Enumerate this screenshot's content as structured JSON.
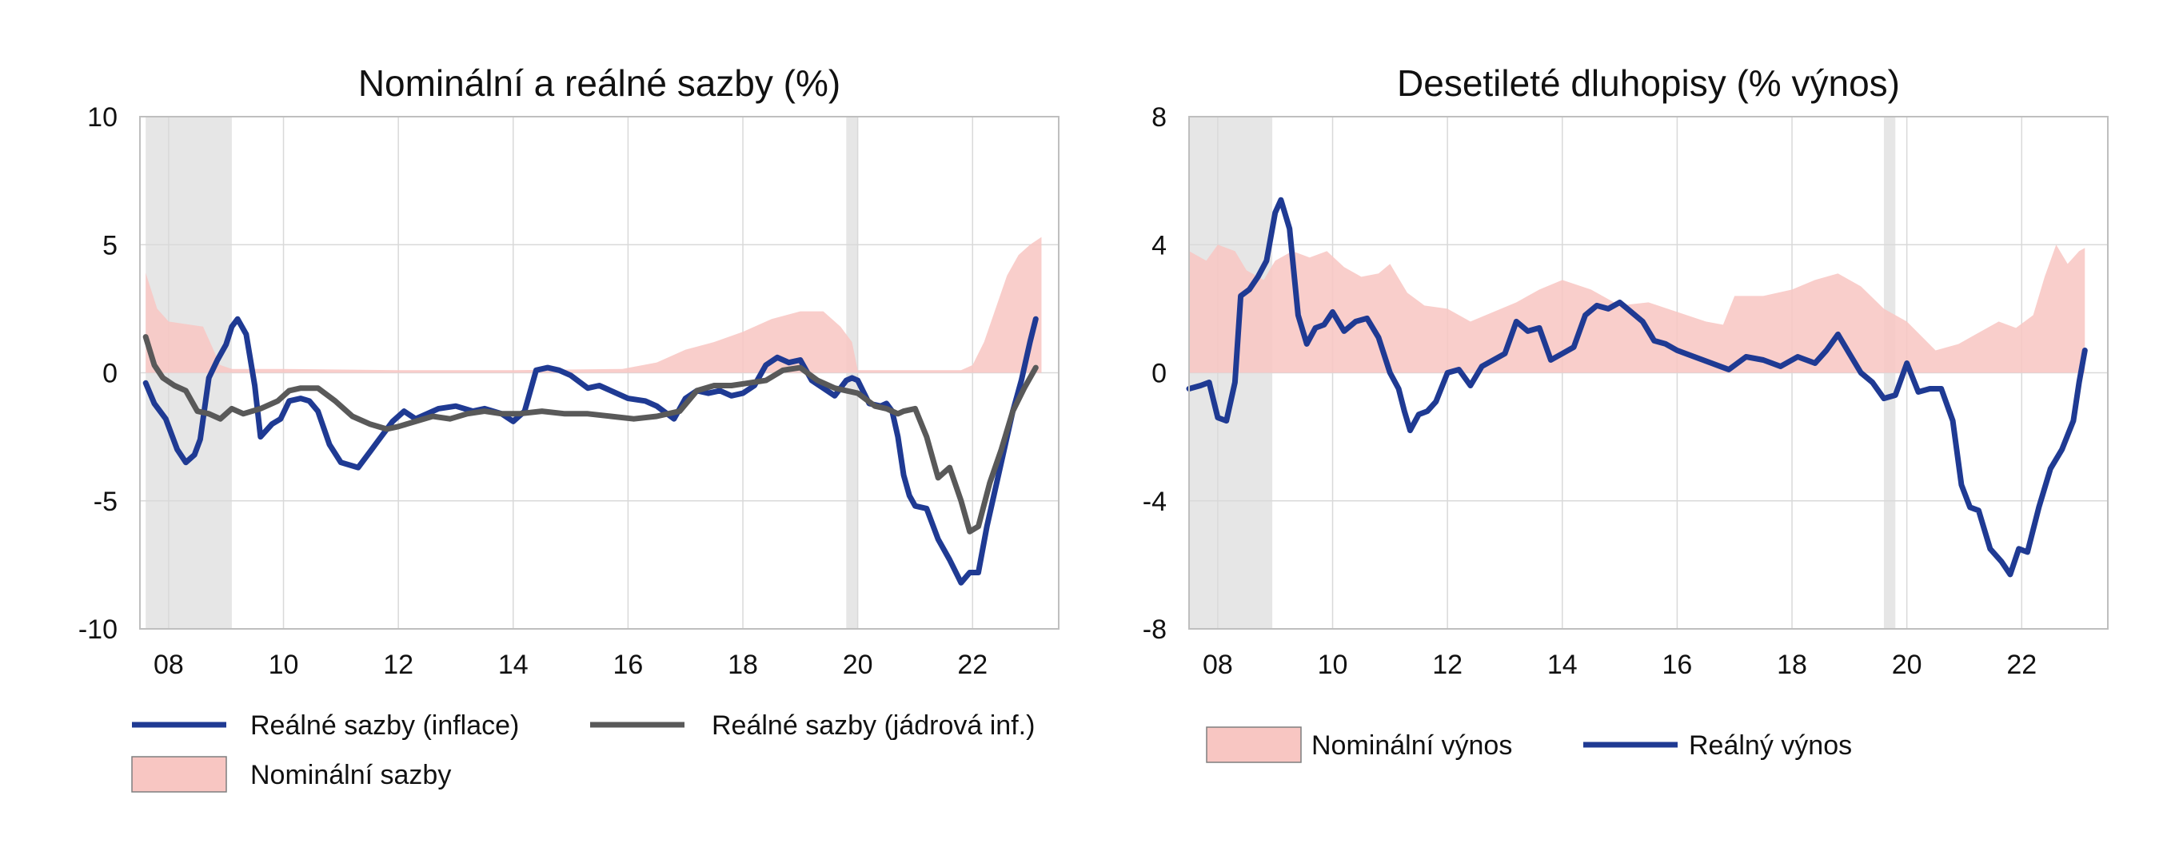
{
  "colors": {
    "real_rate": "#1f3a93",
    "real_core": "#595959",
    "nominal_fill": "#f8c6c2",
    "recession": "#e6e6e6",
    "grid": "#d9d9d9",
    "axis": "#bfbfbf"
  },
  "chart_data": [
    {
      "type": "line",
      "title": "Nominální a reálné sazby (%)",
      "xlim": [
        2007.5,
        2023.5
      ],
      "ylim": [
        -10,
        10
      ],
      "yticks": [
        10,
        5,
        0,
        -5,
        -10
      ],
      "yticklabels": [
        "10",
        "5",
        "0",
        "-5",
        "-10"
      ],
      "xticks": [
        2008,
        2010,
        2012,
        2014,
        2016,
        2018,
        2020,
        2022
      ],
      "xticklabels": [
        "08",
        "10",
        "12",
        "14",
        "16",
        "18",
        "20",
        "22"
      ],
      "grid": true,
      "recessions": [
        [
          2007.6,
          2009.1
        ],
        [
          2019.8,
          2020.0
        ]
      ],
      "legend": [
        {
          "label": "Reálné sazby (inflace)",
          "kind": "line",
          "color": "#1f3a93"
        },
        {
          "label": "Reálné sazby (jádrová inf.)",
          "kind": "line",
          "color": "#595959"
        },
        {
          "label": "Nominální sazby",
          "kind": "area",
          "color": "#f8c6c2"
        }
      ],
      "series": [
        {
          "name": "Nominální sazby",
          "kind": "area",
          "x": [
            2007.6,
            2007.8,
            2008.0,
            2008.3,
            2008.6,
            2008.9,
            2009.1,
            2010,
            2012,
            2014,
            2015.9,
            2016.5,
            2017,
            2017.5,
            2018,
            2018.5,
            2019,
            2019.4,
            2019.7,
            2019.9,
            2020.0,
            2021,
            2021.8,
            2022.0,
            2022.2,
            2022.4,
            2022.6,
            2022.8,
            2023.0,
            2023.2
          ],
          "values": [
            3.9,
            2.5,
            2.0,
            1.9,
            1.8,
            0.3,
            0.15,
            0.15,
            0.1,
            0.1,
            0.15,
            0.4,
            0.9,
            1.2,
            1.6,
            2.1,
            2.4,
            2.4,
            1.8,
            1.2,
            0.1,
            0.1,
            0.1,
            0.3,
            1.2,
            2.5,
            3.8,
            4.6,
            5.0,
            5.3
          ]
        },
        {
          "name": "Reálné sazby (inflace)",
          "kind": "line",
          "x": [
            2007.6,
            2007.75,
            2007.95,
            2008.15,
            2008.3,
            2008.45,
            2008.55,
            2008.7,
            2008.85,
            2009.0,
            2009.1,
            2009.2,
            2009.35,
            2009.5,
            2009.6,
            2009.8,
            2009.95,
            2010.1,
            2010.3,
            2010.45,
            2010.6,
            2010.8,
            2011.0,
            2011.3,
            2011.5,
            2011.7,
            2011.9,
            2012.1,
            2012.3,
            2012.5,
            2012.7,
            2013.0,
            2013.3,
            2013.5,
            2013.8,
            2014.0,
            2014.2,
            2014.4,
            2014.6,
            2014.8,
            2015.0,
            2015.3,
            2015.5,
            2015.7,
            2016.0,
            2016.3,
            2016.5,
            2016.8,
            2017.0,
            2017.2,
            2017.4,
            2017.6,
            2017.8,
            2018.0,
            2018.2,
            2018.4,
            2018.6,
            2018.8,
            2019.0,
            2019.2,
            2019.4,
            2019.6,
            2019.8,
            2019.9,
            2020.0,
            2020.2,
            2020.4,
            2020.5,
            2020.6,
            2020.7,
            2020.8,
            2020.9,
            2021.0,
            2021.2,
            2021.4,
            2021.6,
            2021.8,
            2021.95,
            2022.1,
            2022.25,
            2022.4,
            2022.55,
            2022.7,
            2022.85,
            2023.0,
            2023.1
          ],
          "values": [
            -0.4,
            -1.2,
            -1.8,
            -3.0,
            -3.5,
            -3.2,
            -2.6,
            -0.2,
            0.5,
            1.1,
            1.8,
            2.1,
            1.5,
            -0.5,
            -2.5,
            -2.0,
            -1.8,
            -1.1,
            -1.0,
            -1.1,
            -1.5,
            -2.8,
            -3.5,
            -3.7,
            -3.1,
            -2.5,
            -1.9,
            -1.5,
            -1.8,
            -1.6,
            -1.4,
            -1.3,
            -1.5,
            -1.4,
            -1.6,
            -1.9,
            -1.5,
            0.1,
            0.2,
            0.1,
            -0.1,
            -0.6,
            -0.5,
            -0.7,
            -1.0,
            -1.1,
            -1.3,
            -1.8,
            -1.0,
            -0.7,
            -0.8,
            -0.7,
            -0.9,
            -0.8,
            -0.5,
            0.3,
            0.6,
            0.4,
            0.5,
            -0.3,
            -0.6,
            -0.9,
            -0.3,
            -0.2,
            -0.3,
            -1.2,
            -1.3,
            -1.2,
            -1.5,
            -2.5,
            -4.0,
            -4.8,
            -5.2,
            -5.3,
            -6.5,
            -7.3,
            -8.2,
            -7.8,
            -7.8,
            -6.0,
            -4.5,
            -3.0,
            -1.5,
            -0.3,
            1.2,
            2.1
          ]
        },
        {
          "name": "Reálné sazby (jádrová inf.)",
          "kind": "line",
          "x": [
            2007.6,
            2007.75,
            2007.9,
            2008.1,
            2008.3,
            2008.5,
            2008.7,
            2008.9,
            2009.1,
            2009.3,
            2009.6,
            2009.9,
            2010.1,
            2010.3,
            2010.6,
            2010.9,
            2011.2,
            2011.5,
            2011.8,
            2012.0,
            2012.3,
            2012.6,
            2012.9,
            2013.2,
            2013.5,
            2013.8,
            2014.1,
            2014.5,
            2014.9,
            2015.3,
            2015.7,
            2016.1,
            2016.5,
            2016.9,
            2017.2,
            2017.5,
            2017.8,
            2018.1,
            2018.4,
            2018.7,
            2019.0,
            2019.3,
            2019.6,
            2019.8,
            2020.0,
            2020.3,
            2020.5,
            2020.7,
            2020.8,
            2021.0,
            2021.2,
            2021.4,
            2021.6,
            2021.8,
            2021.95,
            2022.1,
            2022.3,
            2022.5,
            2022.7,
            2022.9,
            2023.1
          ],
          "values": [
            1.4,
            0.3,
            -0.2,
            -0.5,
            -0.7,
            -1.5,
            -1.6,
            -1.8,
            -1.4,
            -1.6,
            -1.4,
            -1.1,
            -0.7,
            -0.6,
            -0.6,
            -1.1,
            -1.7,
            -2.0,
            -2.2,
            -2.1,
            -1.9,
            -1.7,
            -1.8,
            -1.6,
            -1.5,
            -1.6,
            -1.6,
            -1.5,
            -1.6,
            -1.6,
            -1.7,
            -1.8,
            -1.7,
            -1.5,
            -0.7,
            -0.5,
            -0.5,
            -0.4,
            -0.3,
            0.1,
            0.2,
            -0.3,
            -0.6,
            -0.7,
            -0.8,
            -1.3,
            -1.4,
            -1.6,
            -1.5,
            -1.4,
            -2.5,
            -4.1,
            -3.7,
            -5.0,
            -6.2,
            -6.0,
            -4.3,
            -3.0,
            -1.5,
            -0.6,
            0.2
          ]
        }
      ]
    },
    {
      "type": "line",
      "title": "Desetileté dluhopisy (% výnos)",
      "xlim": [
        2007.5,
        2023.5
      ],
      "ylim": [
        -8,
        8
      ],
      "yticks": [
        8,
        4,
        0,
        -4,
        -8
      ],
      "yticklabels": [
        "8",
        "4",
        "0",
        "-4",
        "-8"
      ],
      "xticks": [
        2008,
        2010,
        2012,
        2014,
        2016,
        2018,
        2020,
        2022
      ],
      "xticklabels": [
        "08",
        "10",
        "12",
        "14",
        "16",
        "18",
        "20",
        "22"
      ],
      "grid": true,
      "recessions": [
        [
          2007.5,
          2008.95
        ],
        [
          2019.6,
          2019.8
        ]
      ],
      "legend": [
        {
          "label": "Nominální výnos",
          "kind": "area",
          "color": "#f8c6c2"
        },
        {
          "label": "Reálný výnos",
          "kind": "line",
          "color": "#1f3a93"
        }
      ],
      "series": [
        {
          "name": "Nominální výnos",
          "kind": "area",
          "x": [
            2007.5,
            2007.8,
            2008.0,
            2008.3,
            2008.5,
            2008.8,
            2009.0,
            2009.3,
            2009.6,
            2009.9,
            2010.2,
            2010.5,
            2010.8,
            2011.0,
            2011.3,
            2011.6,
            2012.0,
            2012.4,
            2012.8,
            2013.2,
            2013.6,
            2014.0,
            2014.5,
            2015.0,
            2015.5,
            2016.0,
            2016.5,
            2016.8,
            2017.0,
            2017.5,
            2018.0,
            2018.4,
            2018.8,
            2019.2,
            2019.6,
            2020.0,
            2020.5,
            2020.9,
            2021.2,
            2021.6,
            2021.9,
            2022.2,
            2022.4,
            2022.6,
            2022.8,
            2023.0,
            2023.1
          ],
          "values": [
            3.8,
            3.5,
            4.0,
            3.8,
            3.2,
            2.9,
            3.5,
            3.8,
            3.6,
            3.8,
            3.3,
            3.0,
            3.1,
            3.4,
            2.5,
            2.1,
            2.0,
            1.6,
            1.9,
            2.2,
            2.6,
            2.9,
            2.6,
            2.1,
            2.2,
            1.9,
            1.6,
            1.5,
            2.4,
            2.4,
            2.6,
            2.9,
            3.1,
            2.7,
            2.0,
            1.6,
            0.7,
            0.9,
            1.2,
            1.6,
            1.4,
            1.8,
            3.0,
            4.0,
            3.4,
            3.8,
            3.9
          ]
        },
        {
          "name": "Reálný výnos",
          "kind": "line",
          "x": [
            2007.5,
            2007.7,
            2007.85,
            2008.0,
            2008.15,
            2008.3,
            2008.4,
            2008.55,
            2008.7,
            2008.85,
            2009.0,
            2009.1,
            2009.25,
            2009.4,
            2009.55,
            2009.7,
            2009.85,
            2010.0,
            2010.2,
            2010.4,
            2010.6,
            2010.8,
            2011.0,
            2011.15,
            2011.25,
            2011.35,
            2011.5,
            2011.65,
            2011.8,
            2012.0,
            2012.2,
            2012.4,
            2012.6,
            2012.8,
            2013.0,
            2013.2,
            2013.4,
            2013.6,
            2013.8,
            2014.0,
            2014.2,
            2014.4,
            2014.6,
            2014.8,
            2015.0,
            2015.2,
            2015.4,
            2015.6,
            2015.8,
            2016.0,
            2016.3,
            2016.6,
            2016.9,
            2017.2,
            2017.5,
            2017.8,
            2018.1,
            2018.4,
            2018.6,
            2018.8,
            2019.0,
            2019.2,
            2019.4,
            2019.6,
            2019.8,
            2020.0,
            2020.2,
            2020.4,
            2020.6,
            2020.8,
            2020.95,
            2021.1,
            2021.25,
            2021.45,
            2021.65,
            2021.8,
            2021.95,
            2022.1,
            2022.3,
            2022.5,
            2022.7,
            2022.9,
            2023.0,
            2023.1
          ],
          "values": [
            -0.5,
            -0.4,
            -0.3,
            -1.4,
            -1.5,
            -0.3,
            2.4,
            2.6,
            3.0,
            3.5,
            5.0,
            5.4,
            4.5,
            1.8,
            0.9,
            1.4,
            1.5,
            1.9,
            1.3,
            1.6,
            1.7,
            1.1,
            0.0,
            -0.5,
            -1.2,
            -1.8,
            -1.3,
            -1.2,
            -0.9,
            0.0,
            0.1,
            -0.4,
            0.2,
            0.4,
            0.6,
            1.6,
            1.3,
            1.4,
            0.4,
            0.6,
            0.8,
            1.8,
            2.1,
            2.0,
            2.2,
            1.9,
            1.6,
            1.0,
            0.9,
            0.7,
            0.5,
            0.3,
            0.1,
            0.5,
            0.4,
            0.2,
            0.5,
            0.3,
            0.7,
            1.2,
            0.6,
            0.0,
            -0.3,
            -0.8,
            -0.7,
            0.3,
            -0.6,
            -0.5,
            -0.5,
            -1.5,
            -3.5,
            -4.2,
            -4.3,
            -5.5,
            -5.9,
            -6.3,
            -5.5,
            -5.6,
            -4.2,
            -3.0,
            -2.4,
            -1.5,
            -0.3,
            0.7
          ]
        }
      ]
    }
  ]
}
